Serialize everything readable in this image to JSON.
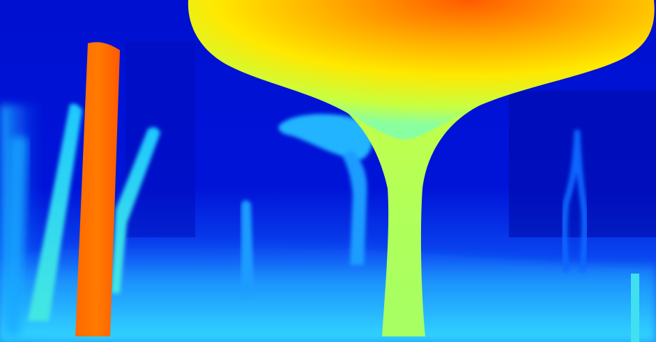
{
  "image": {
    "kind": "depth-map",
    "colormap": "jet",
    "colors": {
      "far": "#0008b0",
      "background": "#0018d8",
      "mid_far": "#0a52ff",
      "mid": "#20b8ff",
      "mid_near": "#5ef2c6",
      "near_mid": "#c8ff3c",
      "near": "#ffe200",
      "nearest": "#ff5a00"
    },
    "regions": [
      "mushroom-canopy",
      "mushroom-stem",
      "orange-pole",
      "left-stalks",
      "small-mushroom",
      "background-stalks",
      "floor"
    ]
  }
}
